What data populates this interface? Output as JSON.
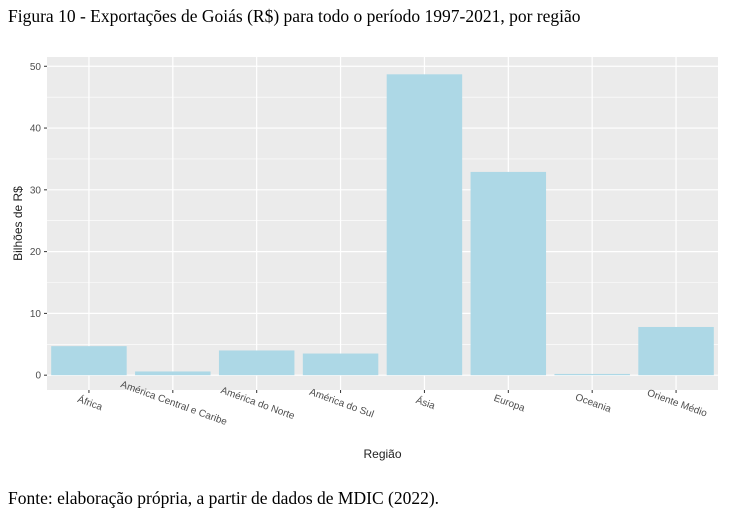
{
  "figure": {
    "caption": "Figura 10 - Exportações de Goiás (R$) para todo o período 1997-2021, por região",
    "source": "Fonte: elaboração própria, a partir de dados de MDIC (2022)."
  },
  "chart_data": {
    "type": "bar",
    "title": "",
    "xlabel": "Região",
    "ylabel": "Bilhões de R$",
    "categories": [
      "África",
      "América Central e Caribe",
      "América do Norte",
      "América do Sul",
      "Ásia",
      "Europa",
      "Oceania",
      "Oriente Médio"
    ],
    "values": [
      4.7,
      0.6,
      4.0,
      3.5,
      48.7,
      32.9,
      0.2,
      7.8
    ],
    "yticks": [
      0,
      10,
      20,
      30,
      40,
      50
    ],
    "ylim": [
      -2.4,
      51.5
    ],
    "grid": true,
    "colors": {
      "bar": "#add8e6",
      "panel": "#ebebeb",
      "grid": "#ffffff"
    }
  }
}
